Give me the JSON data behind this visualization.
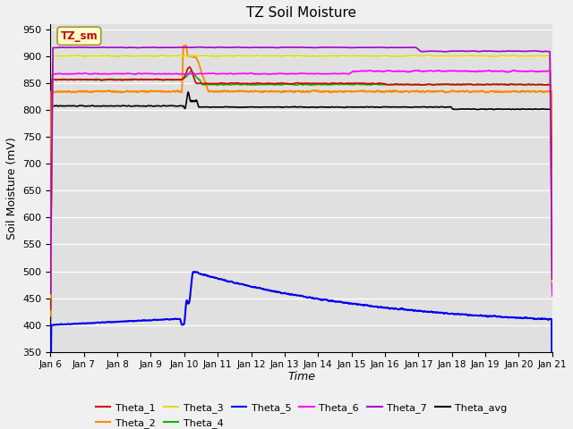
{
  "title": "TZ Soil Moisture",
  "xlabel": "Time",
  "ylabel": "Soil Moisture (mV)",
  "ylim": [
    350,
    960
  ],
  "yticks": [
    350,
    400,
    450,
    500,
    550,
    600,
    650,
    700,
    750,
    800,
    850,
    900,
    950
  ],
  "x_labels": [
    "Jan 6",
    "Jan 7",
    "Jan 8",
    "Jan 9",
    "Jan 10",
    "Jan 11",
    "Jan 12",
    "Jan 13",
    "Jan 14",
    "Jan 15",
    "Jan 16",
    "Jan 17",
    "Jan 18",
    "Jan 19",
    "Jan 20",
    "Jan 21"
  ],
  "annotation_text": "TZ_sm",
  "annotation_color": "#cc0000",
  "annotation_bg": "#ffffcc",
  "annotation_edge": "#999933",
  "bg_color": "#e0e0e0",
  "fig_color": "#f0f0f0",
  "series_colors": {
    "Theta_1": "#dd0000",
    "Theta_2": "#ff8800",
    "Theta_3": "#dddd00",
    "Theta_4": "#00bb00",
    "Theta_5": "#0000ee",
    "Theta_6": "#ff00ff",
    "Theta_7": "#aa00cc",
    "Theta_avg": "#000000"
  },
  "figsize": [
    6.4,
    4.8
  ],
  "dpi": 100
}
